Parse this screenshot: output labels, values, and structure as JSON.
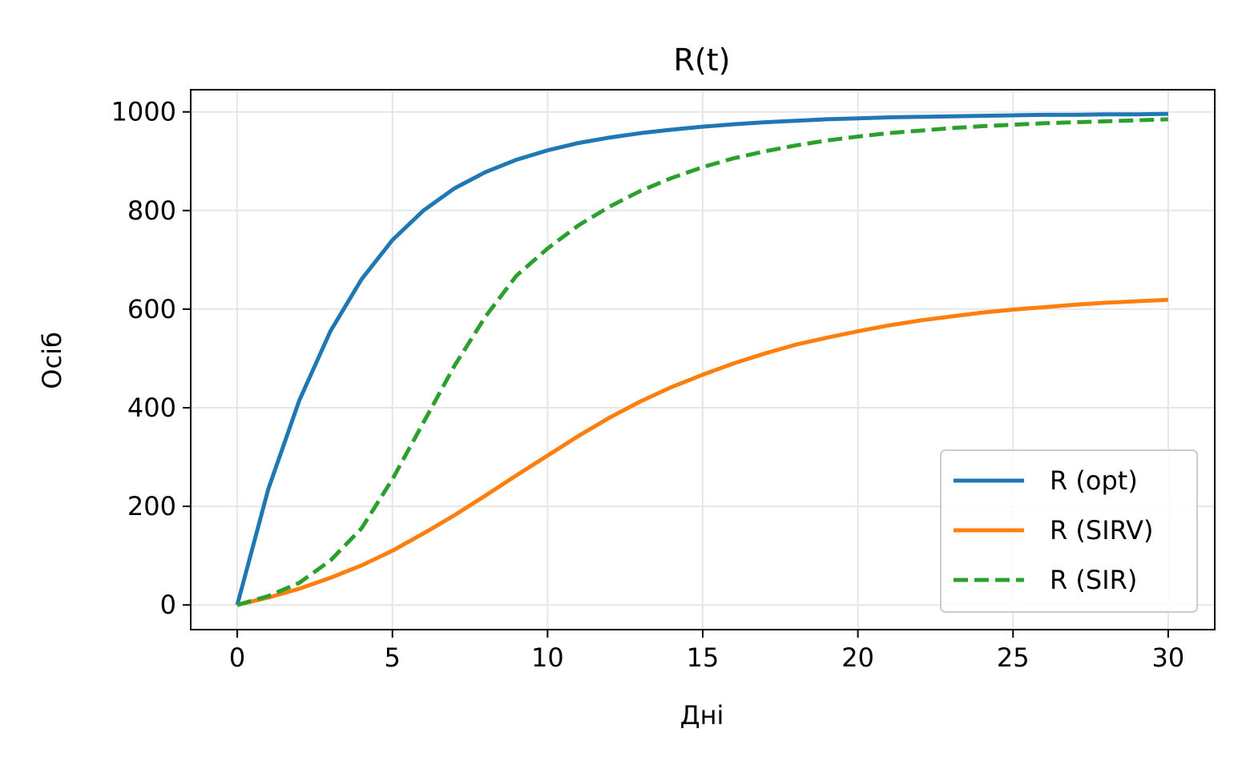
{
  "chart_data": {
    "type": "line",
    "title": "R(t)",
    "xlabel": "Дні",
    "ylabel": "Осіб",
    "xlim": [
      -1.5,
      31.5
    ],
    "ylim": [
      -50,
      1045
    ],
    "xticks": [
      0,
      5,
      10,
      15,
      20,
      25,
      30
    ],
    "yticks": [
      0,
      200,
      400,
      600,
      800,
      1000
    ],
    "grid": true,
    "legend": "bottom-right",
    "x": [
      0,
      1,
      2,
      3,
      4,
      5,
      6,
      7,
      8,
      9,
      10,
      11,
      12,
      13,
      14,
      15,
      16,
      17,
      18,
      19,
      20,
      21,
      22,
      23,
      24,
      25,
      26,
      27,
      28,
      29,
      30
    ],
    "series": [
      {
        "name": "R (opt)",
        "color": "#1f77b4",
        "dash": "solid",
        "values": [
          0,
          235,
          415,
          555,
          660,
          740,
          800,
          845,
          878,
          903,
          922,
          937,
          948,
          957,
          964,
          970,
          975,
          979,
          982,
          985,
          987,
          989,
          990,
          991,
          992,
          993,
          994,
          994,
          995,
          995,
          996
        ]
      },
      {
        "name": "R (SIRV)",
        "color": "#ff7f0e",
        "dash": "solid",
        "values": [
          0,
          15,
          33,
          55,
          80,
          110,
          145,
          182,
          222,
          263,
          303,
          343,
          380,
          413,
          442,
          467,
          490,
          510,
          528,
          542,
          555,
          567,
          577,
          585,
          593,
          599,
          604,
          609,
          613,
          616,
          619
        ]
      },
      {
        "name": "R (SIR)",
        "color": "#2ca02c",
        "dash": "dashed",
        "values": [
          0,
          18,
          45,
          90,
          155,
          255,
          370,
          485,
          585,
          668,
          723,
          770,
          808,
          840,
          866,
          888,
          906,
          920,
          932,
          942,
          950,
          957,
          962,
          967,
          971,
          974,
          977,
          979,
          981,
          983,
          985
        ]
      }
    ]
  }
}
